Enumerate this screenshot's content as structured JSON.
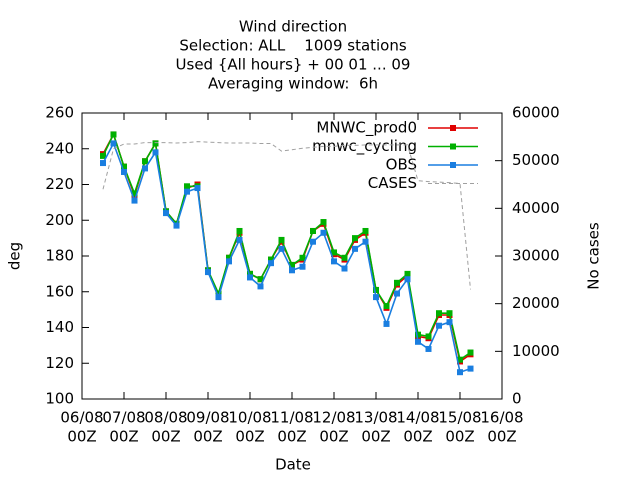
{
  "chart_data": {
    "type": "line",
    "title": [
      "Wind direction",
      "Selection: ALL    1009 stations",
      "Used {All hours} + 00 01 ... 09",
      "Averaging window:  6h"
    ],
    "xlabel": "Date",
    "ylabel": "deg",
    "y2label": "No cases",
    "x": [
      "06/08 12Z",
      "06/08 18Z",
      "07/08 00Z",
      "07/08 06Z",
      "07/08 12Z",
      "07/08 18Z",
      "08/08 00Z",
      "08/08 06Z",
      "08/08 12Z",
      "08/08 18Z",
      "09/08 00Z",
      "09/08 06Z",
      "09/08 12Z",
      "09/08 18Z",
      "10/08 00Z",
      "10/08 06Z",
      "10/08 12Z",
      "10/08 18Z",
      "11/08 00Z",
      "11/08 06Z",
      "11/08 12Z",
      "11/08 18Z",
      "12/08 00Z",
      "12/08 06Z",
      "12/08 12Z",
      "12/08 18Z",
      "13/08 00Z",
      "13/08 06Z",
      "13/08 12Z",
      "13/08 18Z",
      "14/08 00Z",
      "14/08 06Z",
      "14/08 12Z",
      "14/08 18Z",
      "15/08 00Z",
      "15/08 06Z"
    ],
    "xticks": [
      {
        "date": "06/08",
        "time": "00Z"
      },
      {
        "date": "07/08",
        "time": "00Z"
      },
      {
        "date": "08/08",
        "time": "00Z"
      },
      {
        "date": "09/08",
        "time": "00Z"
      },
      {
        "date": "10/08",
        "time": "00Z"
      },
      {
        "date": "11/08",
        "time": "00Z"
      },
      {
        "date": "12/08",
        "time": "00Z"
      },
      {
        "date": "13/08",
        "time": "00Z"
      },
      {
        "date": "14/08",
        "time": "00Z"
      },
      {
        "date": "15/08",
        "time": "00Z"
      },
      {
        "date": "16/08",
        "time": "00Z"
      }
    ],
    "ylim": [
      100,
      260
    ],
    "yticks": [
      100,
      120,
      140,
      160,
      180,
      200,
      220,
      240,
      260
    ],
    "y2lim": [
      0,
      60000
    ],
    "y2ticks": [
      0,
      10000,
      20000,
      30000,
      40000,
      50000,
      60000
    ],
    "legend": "top-right",
    "series": [
      {
        "name": "MNWC_prod0",
        "color": "#e00000",
        "marker": true,
        "values": [
          237,
          248,
          230,
          214,
          233,
          243,
          205,
          198,
          218,
          220,
          172,
          158,
          179,
          193,
          170,
          167,
          178,
          188,
          175,
          178,
          194,
          198,
          181,
          178,
          189,
          193,
          161,
          151,
          164,
          169,
          135,
          134,
          147,
          147,
          121,
          125
        ]
      },
      {
        "name": "mnwc_cycling",
        "color": "#00b000",
        "marker": true,
        "values": [
          236,
          248,
          230,
          215,
          233,
          243,
          205,
          198,
          219,
          219,
          172,
          159,
          179,
          194,
          170,
          167,
          178,
          189,
          175,
          179,
          194,
          199,
          182,
          179,
          190,
          194,
          161,
          152,
          165,
          170,
          136,
          135,
          148,
          148,
          122,
          126
        ]
      },
      {
        "name": "OBS",
        "color": "#1a7ee0",
        "marker": true,
        "values": [
          232,
          243,
          227,
          211,
          229,
          238,
          204,
          197,
          216,
          218,
          171,
          157,
          177,
          189,
          168,
          163,
          176,
          184,
          172,
          174,
          188,
          193,
          177,
          173,
          184,
          188,
          157,
          142,
          159,
          167,
          132,
          128,
          141,
          143,
          115,
          117
        ]
      },
      {
        "name": "CASES",
        "color": "#a0a0a0",
        "dashed": true,
        "axis": "y2",
        "values": [
          44000,
          52500,
          53500,
          53500,
          53800,
          53800,
          53800,
          53700,
          53800,
          54000,
          53900,
          53800,
          53700,
          53700,
          53700,
          53600,
          53600,
          52000,
          52300,
          52600,
          52800,
          53000,
          53000,
          53200,
          53200,
          53300,
          53300,
          53300,
          53300,
          53300,
          45800,
          45600,
          45500,
          45400,
          45200,
          23000
        ]
      }
    ]
  }
}
